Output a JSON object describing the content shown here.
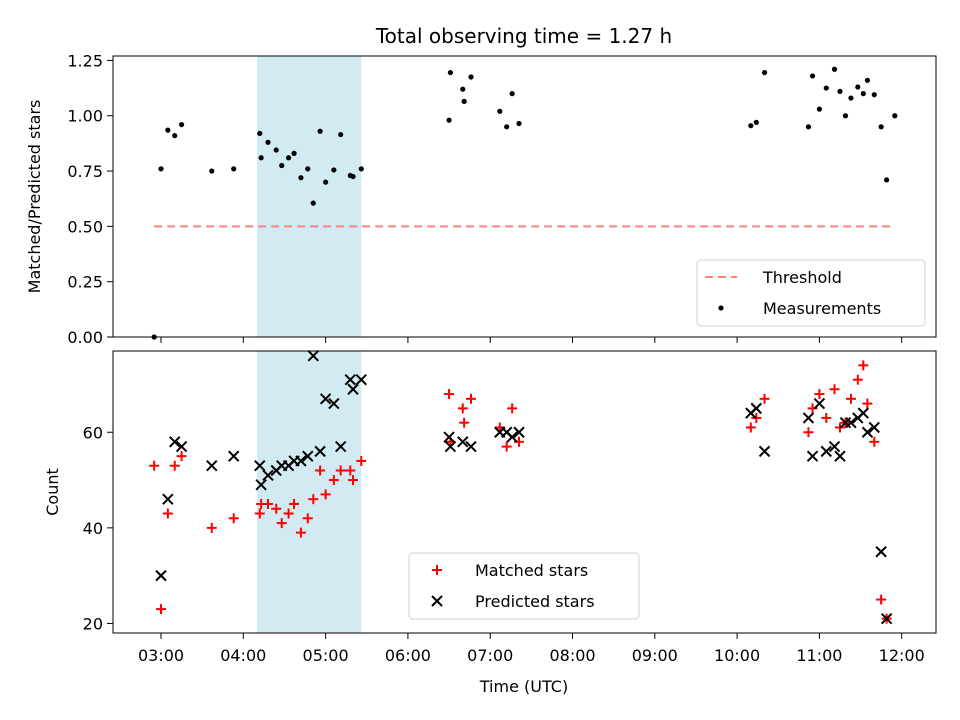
{
  "chart_data": {
    "type": "scatter",
    "title": "Total observing time = 1.27 h",
    "xlabel": "Time (UTC)",
    "x_ticks": [
      "03:00",
      "04:00",
      "05:00",
      "06:00",
      "07:00",
      "08:00",
      "09:00",
      "10:00",
      "11:00",
      "12:00"
    ],
    "highlight_span": {
      "x_start": "04:10",
      "x_end": "05:26",
      "color": "#add8e6"
    },
    "panels": [
      {
        "name": "ratio",
        "ylabel": "Matched/Predicted stars",
        "ylim": [
          0,
          1.27
        ],
        "y_ticks": [
          "0.00",
          "0.25",
          "0.50",
          "0.75",
          "1.00",
          "1.25"
        ],
        "legend": {
          "placement": "lower-right",
          "entries": [
            {
              "label": "Threshold",
              "style": "dashed-line",
              "color": "#ff8080"
            },
            {
              "label": "Measurements",
              "style": "dot",
              "color": "#000000"
            }
          ]
        },
        "threshold": {
          "value": 0.5,
          "x_start": "02:55",
          "x_end": "11:55"
        },
        "measurements": [
          {
            "x": "02:55",
            "y": 0.0
          },
          {
            "x": "03:00",
            "y": 0.76
          },
          {
            "x": "03:05",
            "y": 0.935
          },
          {
            "x": "03:10",
            "y": 0.91
          },
          {
            "x": "03:15",
            "y": 0.96
          },
          {
            "x": "03:37",
            "y": 0.75
          },
          {
            "x": "03:53",
            "y": 0.76
          },
          {
            "x": "04:12",
            "y": 0.92
          },
          {
            "x": "04:13",
            "y": 0.81
          },
          {
            "x": "04:18",
            "y": 0.88
          },
          {
            "x": "04:24",
            "y": 0.845
          },
          {
            "x": "04:28",
            "y": 0.775
          },
          {
            "x": "04:33",
            "y": 0.81
          },
          {
            "x": "04:37",
            "y": 0.83
          },
          {
            "x": "04:42",
            "y": 0.72
          },
          {
            "x": "04:47",
            "y": 0.76
          },
          {
            "x": "04:51",
            "y": 0.605
          },
          {
            "x": "04:56",
            "y": 0.93
          },
          {
            "x": "05:00",
            "y": 0.7
          },
          {
            "x": "05:06",
            "y": 0.755
          },
          {
            "x": "05:11",
            "y": 0.915
          },
          {
            "x": "05:18",
            "y": 0.73
          },
          {
            "x": "05:20",
            "y": 0.725
          },
          {
            "x": "05:26",
            "y": 0.76
          },
          {
            "x": "06:30",
            "y": 0.98
          },
          {
            "x": "06:31",
            "y": 1.195
          },
          {
            "x": "06:40",
            "y": 1.12
          },
          {
            "x": "06:41",
            "y": 1.065
          },
          {
            "x": "06:46",
            "y": 1.175
          },
          {
            "x": "07:07",
            "y": 1.02
          },
          {
            "x": "07:12",
            "y": 0.95
          },
          {
            "x": "07:16",
            "y": 1.1
          },
          {
            "x": "07:21",
            "y": 0.965
          },
          {
            "x": "10:10",
            "y": 0.955
          },
          {
            "x": "10:14",
            "y": 0.97
          },
          {
            "x": "10:20",
            "y": 1.195
          },
          {
            "x": "10:52",
            "y": 0.95
          },
          {
            "x": "10:55",
            "y": 1.18
          },
          {
            "x": "11:00",
            "y": 1.03
          },
          {
            "x": "11:05",
            "y": 1.125
          },
          {
            "x": "11:11",
            "y": 1.21
          },
          {
            "x": "11:15",
            "y": 1.11
          },
          {
            "x": "11:19",
            "y": 1.0
          },
          {
            "x": "11:23",
            "y": 1.08
          },
          {
            "x": "11:28",
            "y": 1.13
          },
          {
            "x": "11:32",
            "y": 1.1
          },
          {
            "x": "11:35",
            "y": 1.16
          },
          {
            "x": "11:40",
            "y": 1.095
          },
          {
            "x": "11:45",
            "y": 0.95
          },
          {
            "x": "11:49",
            "y": 0.71
          },
          {
            "x": "11:55",
            "y": 1.0
          }
        ]
      },
      {
        "name": "counts",
        "ylabel": "Count",
        "ylim": [
          18,
          77
        ],
        "y_ticks": [
          "20",
          "40",
          "60"
        ],
        "legend": {
          "placement": "lower-center",
          "entries": [
            {
              "label": "Matched stars",
              "style": "plus",
              "color": "#ff0000"
            },
            {
              "label": "Predicted stars",
              "style": "x",
              "color": "#000000"
            }
          ]
        },
        "matched_stars": [
          {
            "x": "02:55",
            "y": 53
          },
          {
            "x": "03:00",
            "y": 23
          },
          {
            "x": "03:05",
            "y": 43
          },
          {
            "x": "03:10",
            "y": 53
          },
          {
            "x": "03:15",
            "y": 55
          },
          {
            "x": "03:37",
            "y": 40
          },
          {
            "x": "03:53",
            "y": 42
          },
          {
            "x": "04:12",
            "y": 43
          },
          {
            "x": "04:13",
            "y": 45
          },
          {
            "x": "04:18",
            "y": 45
          },
          {
            "x": "04:24",
            "y": 44
          },
          {
            "x": "04:28",
            "y": 41
          },
          {
            "x": "04:33",
            "y": 43
          },
          {
            "x": "04:37",
            "y": 45
          },
          {
            "x": "04:42",
            "y": 39
          },
          {
            "x": "04:47",
            "y": 42
          },
          {
            "x": "04:51",
            "y": 46
          },
          {
            "x": "04:56",
            "y": 52
          },
          {
            "x": "05:00",
            "y": 47
          },
          {
            "x": "05:06",
            "y": 50
          },
          {
            "x": "05:11",
            "y": 52
          },
          {
            "x": "05:18",
            "y": 52
          },
          {
            "x": "05:20",
            "y": 50
          },
          {
            "x": "05:26",
            "y": 54
          },
          {
            "x": "06:30",
            "y": 68
          },
          {
            "x": "06:31",
            "y": 58
          },
          {
            "x": "06:40",
            "y": 65
          },
          {
            "x": "06:41",
            "y": 62
          },
          {
            "x": "06:46",
            "y": 67
          },
          {
            "x": "07:07",
            "y": 61
          },
          {
            "x": "07:12",
            "y": 57
          },
          {
            "x": "07:16",
            "y": 65
          },
          {
            "x": "07:21",
            "y": 58
          },
          {
            "x": "10:10",
            "y": 61
          },
          {
            "x": "10:14",
            "y": 63
          },
          {
            "x": "10:20",
            "y": 67
          },
          {
            "x": "10:52",
            "y": 60
          },
          {
            "x": "10:55",
            "y": 65
          },
          {
            "x": "11:00",
            "y": 68
          },
          {
            "x": "11:05",
            "y": 63
          },
          {
            "x": "11:11",
            "y": 69
          },
          {
            "x": "11:15",
            "y": 61
          },
          {
            "x": "11:19",
            "y": 62
          },
          {
            "x": "11:23",
            "y": 67
          },
          {
            "x": "11:28",
            "y": 71
          },
          {
            "x": "11:32",
            "y": 74
          },
          {
            "x": "11:35",
            "y": 66
          },
          {
            "x": "11:40",
            "y": 58
          },
          {
            "x": "11:45",
            "y": 25
          },
          {
            "x": "11:49",
            "y": 21
          }
        ],
        "predicted_stars": [
          {
            "x": "03:00",
            "y": 30
          },
          {
            "x": "03:05",
            "y": 46
          },
          {
            "x": "03:10",
            "y": 58
          },
          {
            "x": "03:15",
            "y": 57
          },
          {
            "x": "03:37",
            "y": 53
          },
          {
            "x": "03:53",
            "y": 55
          },
          {
            "x": "04:12",
            "y": 53
          },
          {
            "x": "04:13",
            "y": 49
          },
          {
            "x": "04:18",
            "y": 51
          },
          {
            "x": "04:24",
            "y": 52
          },
          {
            "x": "04:28",
            "y": 53
          },
          {
            "x": "04:33",
            "y": 53
          },
          {
            "x": "04:37",
            "y": 54
          },
          {
            "x": "04:42",
            "y": 54
          },
          {
            "x": "04:47",
            "y": 55
          },
          {
            "x": "04:51",
            "y": 76
          },
          {
            "x": "04:56",
            "y": 56
          },
          {
            "x": "05:00",
            "y": 67
          },
          {
            "x": "05:06",
            "y": 66
          },
          {
            "x": "05:11",
            "y": 57
          },
          {
            "x": "05:18",
            "y": 71
          },
          {
            "x": "05:20",
            "y": 69
          },
          {
            "x": "05:26",
            "y": 71
          },
          {
            "x": "06:30",
            "y": 59
          },
          {
            "x": "06:31",
            "y": 57
          },
          {
            "x": "06:40",
            "y": 58
          },
          {
            "x": "06:46",
            "y": 57
          },
          {
            "x": "07:07",
            "y": 60
          },
          {
            "x": "07:12",
            "y": 60
          },
          {
            "x": "07:16",
            "y": 59
          },
          {
            "x": "07:21",
            "y": 60
          },
          {
            "x": "10:10",
            "y": 64
          },
          {
            "x": "10:14",
            "y": 65
          },
          {
            "x": "10:20",
            "y": 56
          },
          {
            "x": "10:52",
            "y": 63
          },
          {
            "x": "10:55",
            "y": 55
          },
          {
            "x": "11:00",
            "y": 66
          },
          {
            "x": "11:05",
            "y": 56
          },
          {
            "x": "11:11",
            "y": 57
          },
          {
            "x": "11:15",
            "y": 55
          },
          {
            "x": "11:19",
            "y": 62
          },
          {
            "x": "11:23",
            "y": 62
          },
          {
            "x": "11:28",
            "y": 63
          },
          {
            "x": "11:32",
            "y": 64
          },
          {
            "x": "11:35",
            "y": 60
          },
          {
            "x": "11:40",
            "y": 61
          },
          {
            "x": "11:45",
            "y": 35
          },
          {
            "x": "11:49",
            "y": 21
          }
        ]
      }
    ]
  }
}
